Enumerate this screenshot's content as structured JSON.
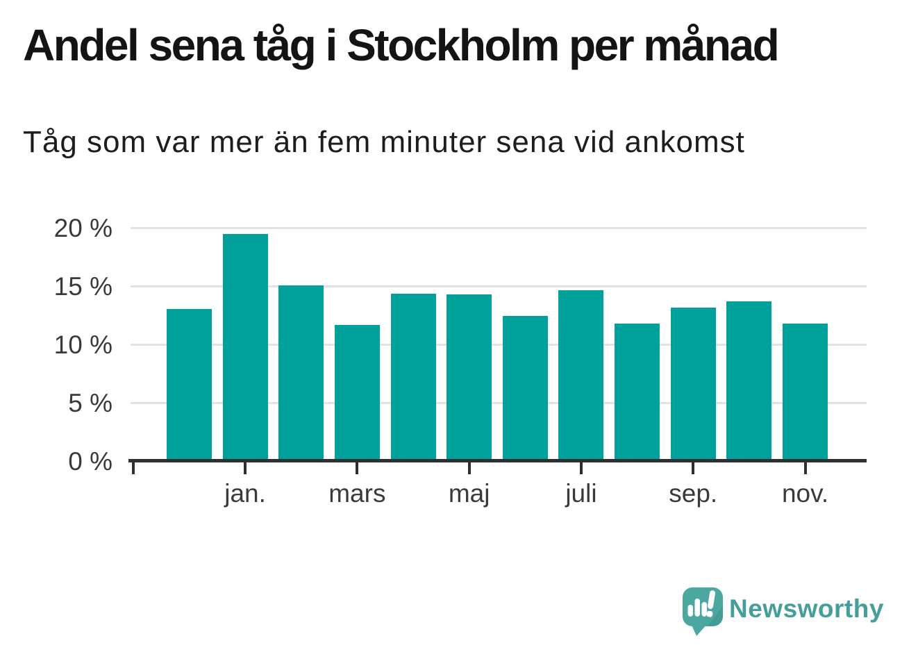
{
  "chart_data": {
    "type": "bar",
    "title": "Andel sena tåg i Stockholm per månad",
    "subtitle": "Tåg som var mer än fem minuter sena vid ankomst",
    "unit": "%",
    "ylim": [
      0,
      20
    ],
    "grid": true,
    "bar_color": "#00a19a",
    "values": [
      13.1,
      19.5,
      15.1,
      11.7,
      14.4,
      14.3,
      12.5,
      14.7,
      11.8,
      13.2,
      13.7,
      11.8
    ],
    "y_ticks": [
      {
        "value": 20,
        "label": "20 %"
      },
      {
        "value": 15,
        "label": "15 %"
      },
      {
        "value": 10,
        "label": "10 %"
      },
      {
        "value": 5,
        "label": "5 %"
      },
      {
        "value": 0,
        "label": "0 %"
      }
    ],
    "x_ticks": [
      {
        "bar_index": 1,
        "label": "jan."
      },
      {
        "bar_index": 3,
        "label": "mars"
      },
      {
        "bar_index": 5,
        "label": "maj"
      },
      {
        "bar_index": 7,
        "label": "juli"
      },
      {
        "bar_index": 9,
        "label": "sep."
      },
      {
        "bar_index": 11,
        "label": "nov."
      }
    ],
    "leading_unlabeled_tick": true,
    "gridline_color": "#e2e2e2",
    "axis_color": "#2f2f2f",
    "label_color": "#3a3a3a"
  },
  "branding": {
    "wordmark": "Newsworthy",
    "wordmark_color": "#469e98",
    "bubble_color": "#4ba8a1",
    "bubble_shade_color": "#2f7d78"
  }
}
